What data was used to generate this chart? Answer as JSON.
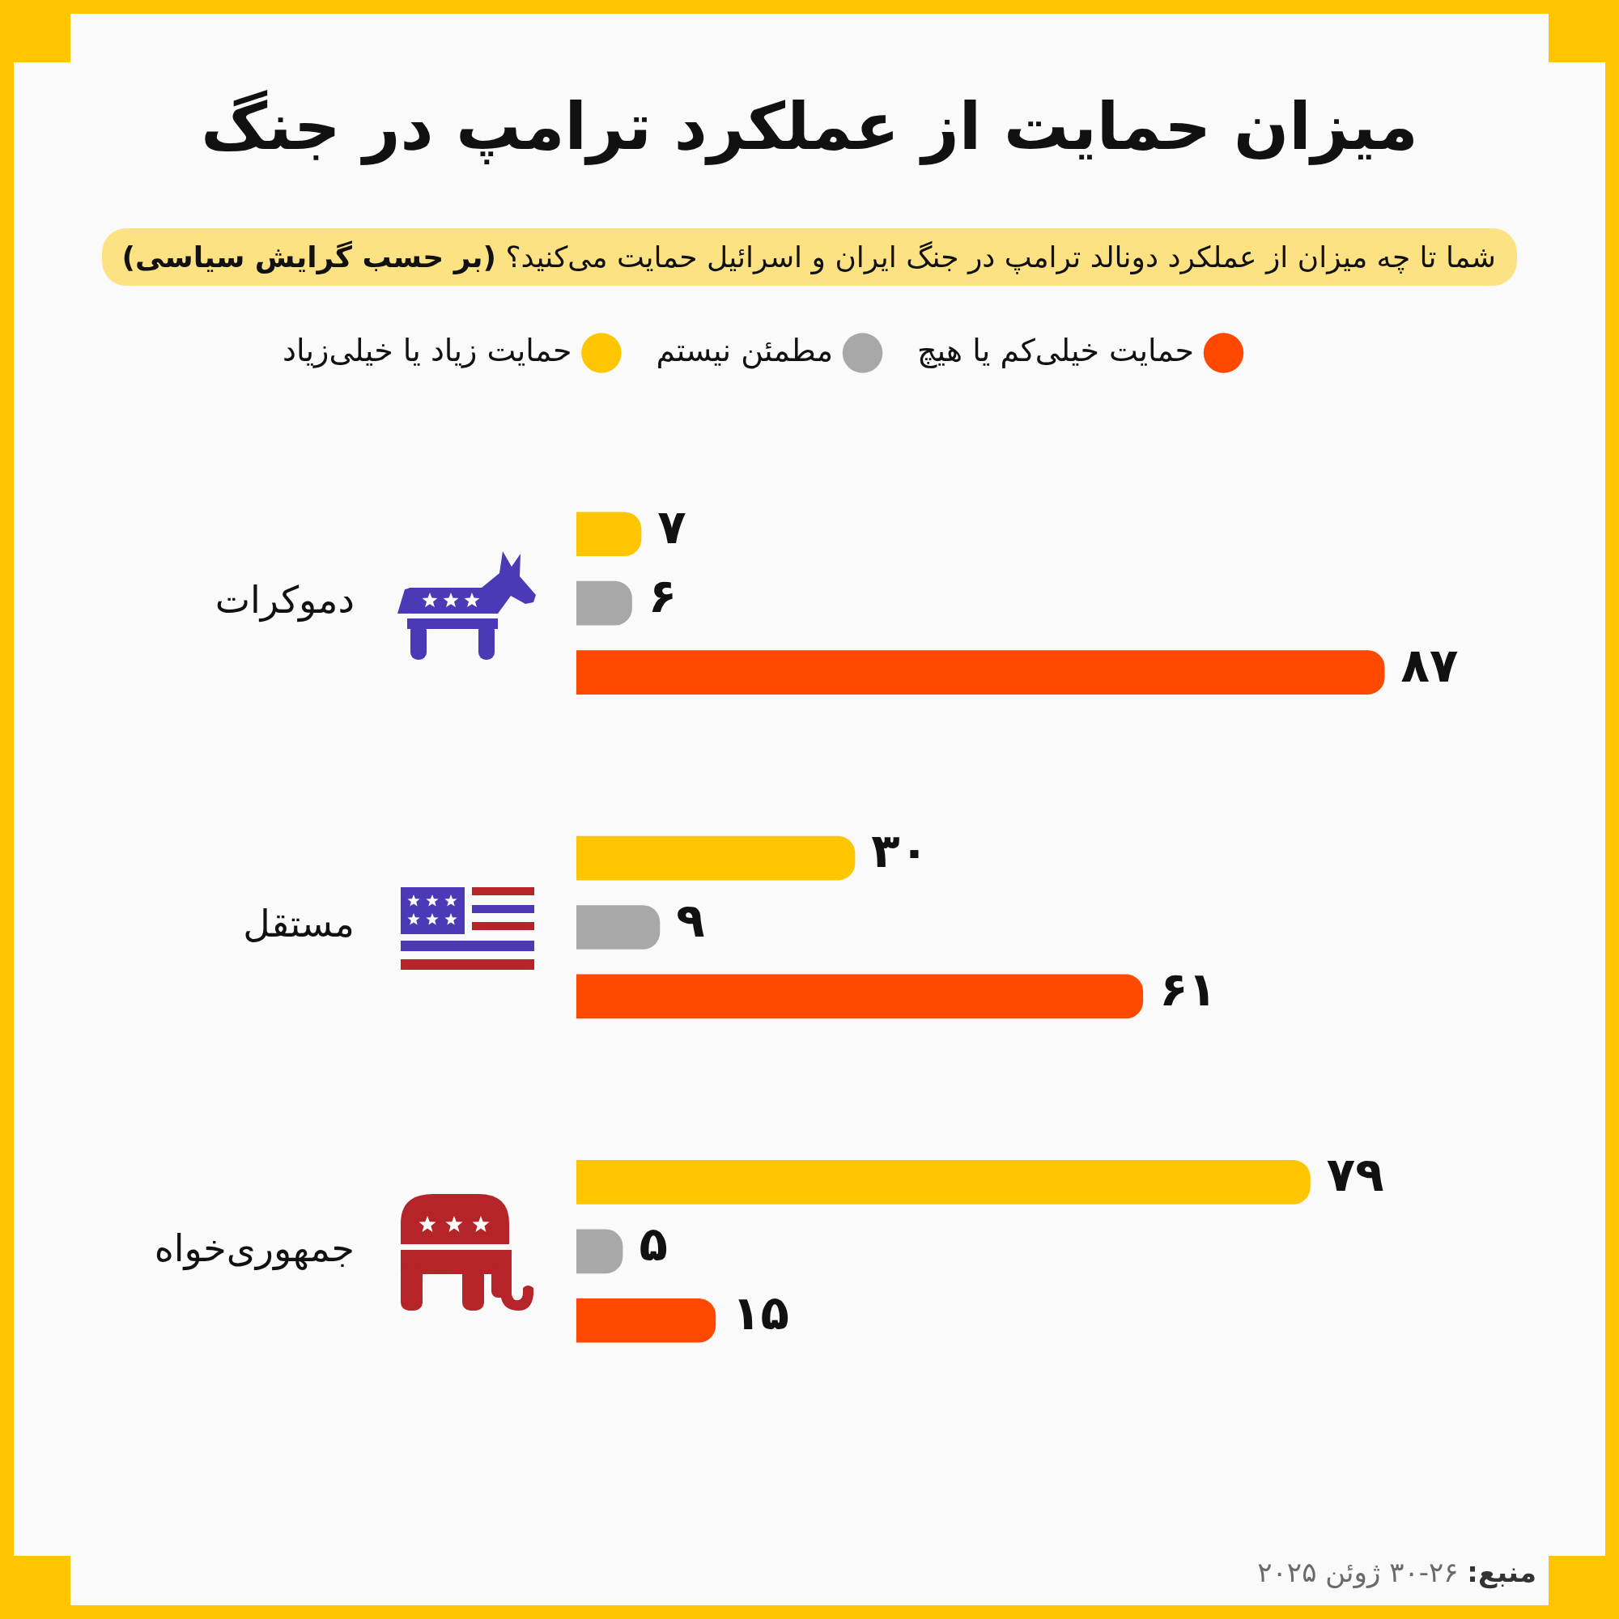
{
  "chart_data": {
    "type": "bar",
    "orientation": "horizontal",
    "title": "میزان حمایت از عملکرد ترامپ در جنگ",
    "subtitle": "شما تا چه میزان از عملکرد دونالد ترامپ در جنگ ایران و اسرائیل حمایت می‌کنید؟ (بر حسب گرایش سیاسی)",
    "categories": [
      "دموکرات",
      "مستقل",
      "جمهوری‌خواه"
    ],
    "series": [
      {
        "name": "حمایت زیاد یا خیلی‌زیاد",
        "color": "#ffc600",
        "values": [
          7,
          30,
          79
        ],
        "value_labels": [
          "۷",
          "۳۰",
          "۷۹"
        ]
      },
      {
        "name": "مطمئن نیستم",
        "color": "#a8a8a8",
        "values": [
          6,
          9,
          5
        ],
        "value_labels": [
          "۶",
          "۹",
          "۵"
        ]
      },
      {
        "name": "حمایت خیلی‌کم یا هیچ",
        "color": "#ff4800",
        "values": [
          87,
          61,
          15
        ],
        "value_labels": [
          "۸۷",
          "۶۱",
          "۱۵"
        ]
      }
    ],
    "tick_labels": "y",
    "legend": "top",
    "annotations": [
      "منبع: ۲۶-۳۰ ژوئن ۲۰۲۵"
    ]
  }
}
